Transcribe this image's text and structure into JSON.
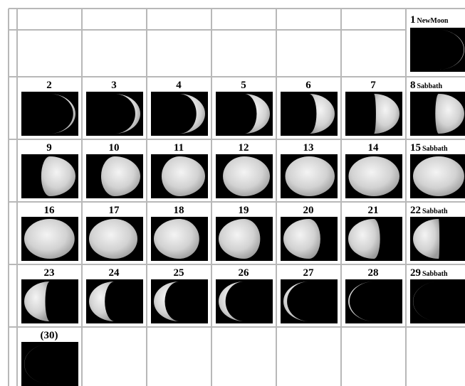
{
  "calendar": {
    "weeks": [
      [
        null,
        null,
        null,
        null,
        null,
        null,
        {
          "day": "1",
          "note": "NewMoon"
        }
      ],
      [
        {
          "day": "2"
        },
        {
          "day": "3"
        },
        {
          "day": "4"
        },
        {
          "day": "5"
        },
        {
          "day": "6"
        },
        {
          "day": "7"
        },
        {
          "day": "8",
          "note": "Sabbath"
        }
      ],
      [
        {
          "day": "9"
        },
        {
          "day": "10"
        },
        {
          "day": "11"
        },
        {
          "day": "12"
        },
        {
          "day": "13"
        },
        {
          "day": "14"
        },
        {
          "day": "15",
          "note": "Sabbath"
        }
      ],
      [
        {
          "day": "16"
        },
        {
          "day": "17"
        },
        {
          "day": "18"
        },
        {
          "day": "19"
        },
        {
          "day": "20"
        },
        {
          "day": "21"
        },
        {
          "day": "22",
          "note": "Sabbath"
        }
      ],
      [
        {
          "day": "23"
        },
        {
          "day": "24"
        },
        {
          "day": "25"
        },
        {
          "day": "26"
        },
        {
          "day": "27"
        },
        {
          "day": "28"
        },
        {
          "day": "29",
          "note": "Sabbath"
        }
      ],
      [
        {
          "day": "(30)"
        },
        null,
        null,
        null,
        null,
        null,
        null
      ]
    ]
  }
}
